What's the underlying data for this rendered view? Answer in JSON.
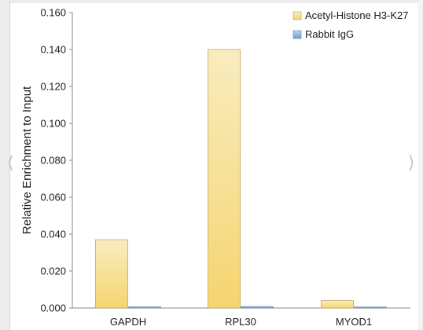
{
  "chart_data": {
    "type": "bar",
    "title": "",
    "xlabel": "",
    "ylabel": "Relative Enrichment to Input",
    "categories": [
      "GAPDH",
      "RPL30",
      "MYOD1"
    ],
    "series": [
      {
        "name": "Acetyl-Histone H3-K27",
        "values": [
          0.037,
          0.14,
          0.004
        ],
        "color": "#f6d56f"
      },
      {
        "name": "Rabbit IgG",
        "values": [
          0.0006,
          0.0008,
          0.0003
        ],
        "color": "#6f9fd0"
      }
    ],
    "ylim": [
      0,
      0.16
    ],
    "yticks": [
      "0.000",
      "0.020",
      "0.040",
      "0.060",
      "0.080",
      "0.100",
      "0.120",
      "0.140",
      "0.160"
    ],
    "grid": false,
    "legend_position": "top-right"
  },
  "viewer": {
    "prev_icon": "chevron-left-icon",
    "next_icon": "chevron-right-icon"
  }
}
